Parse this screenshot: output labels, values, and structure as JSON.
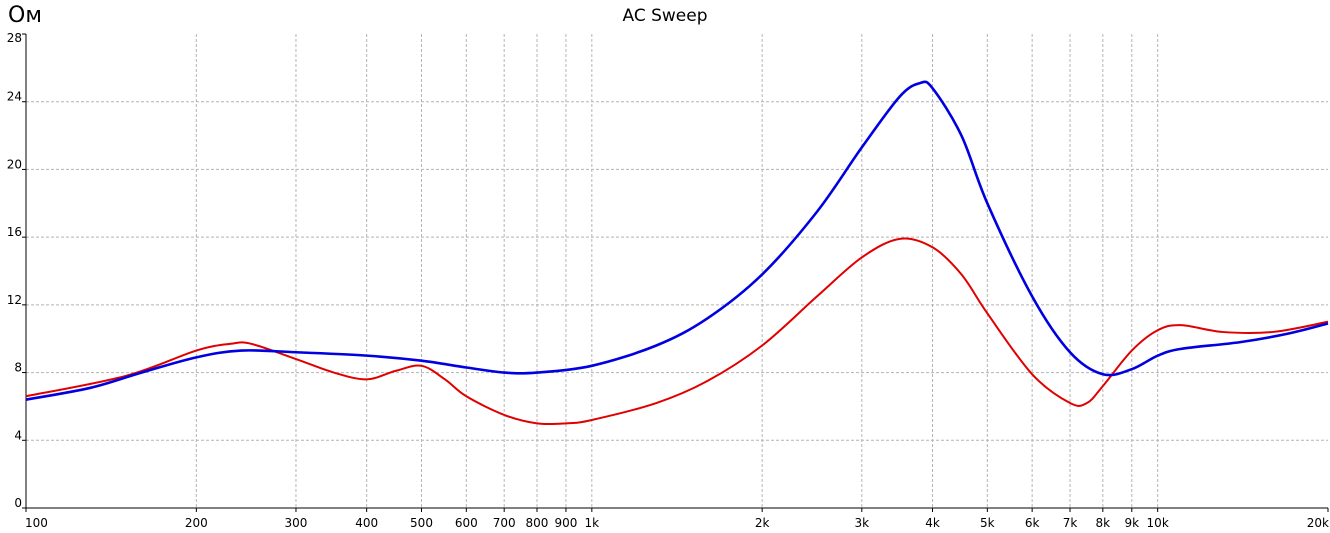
{
  "chart_data": {
    "type": "line",
    "title": "AC Sweep",
    "ylabel": "Ом",
    "xlabel": "",
    "xscale": "log",
    "xlim": [
      100,
      20000
    ],
    "ylim": [
      0,
      28
    ],
    "grid": true,
    "x_ticks": [
      {
        "value": 100,
        "label": "100"
      },
      {
        "value": 200,
        "label": "200"
      },
      {
        "value": 300,
        "label": "300"
      },
      {
        "value": 400,
        "label": "400"
      },
      {
        "value": 500,
        "label": "500"
      },
      {
        "value": 600,
        "label": "600"
      },
      {
        "value": 700,
        "label": "700"
      },
      {
        "value": 800,
        "label": "800"
      },
      {
        "value": 900,
        "label": "900"
      },
      {
        "value": 1000,
        "label": "1k"
      },
      {
        "value": 2000,
        "label": "2k"
      },
      {
        "value": 3000,
        "label": "3k"
      },
      {
        "value": 4000,
        "label": "4k"
      },
      {
        "value": 5000,
        "label": "5k"
      },
      {
        "value": 6000,
        "label": "6k"
      },
      {
        "value": 7000,
        "label": "7k"
      },
      {
        "value": 8000,
        "label": "8k"
      },
      {
        "value": 9000,
        "label": "9k"
      },
      {
        "value": 10000,
        "label": "10k"
      },
      {
        "value": 20000,
        "label": "20k"
      }
    ],
    "y_ticks": [
      {
        "value": 0,
        "label": "0"
      },
      {
        "value": 4,
        "label": "4"
      },
      {
        "value": 8,
        "label": "8"
      },
      {
        "value": 12,
        "label": "12"
      },
      {
        "value": 16,
        "label": "16"
      },
      {
        "value": 20,
        "label": "20"
      },
      {
        "value": 24,
        "label": "24"
      },
      {
        "value": 28,
        "label": "28"
      }
    ],
    "series": [
      {
        "color": "#0000e0",
        "points": [
          [
            100,
            6.4
          ],
          [
            130,
            7.1
          ],
          [
            160,
            8.0
          ],
          [
            200,
            8.9
          ],
          [
            240,
            9.3
          ],
          [
            300,
            9.2
          ],
          [
            400,
            9.0
          ],
          [
            500,
            8.7
          ],
          [
            600,
            8.3
          ],
          [
            700,
            8.0
          ],
          [
            800,
            8.0
          ],
          [
            1000,
            8.4
          ],
          [
            1300,
            9.6
          ],
          [
            1600,
            11.2
          ],
          [
            2000,
            13.8
          ],
          [
            2500,
            17.5
          ],
          [
            3000,
            21.3
          ],
          [
            3500,
            24.3
          ],
          [
            3800,
            25.1
          ],
          [
            4000,
            24.8
          ],
          [
            4500,
            22.0
          ],
          [
            5000,
            18.0
          ],
          [
            6000,
            12.5
          ],
          [
            7000,
            9.2
          ],
          [
            8000,
            7.9
          ],
          [
            9000,
            8.2
          ],
          [
            10000,
            9.0
          ],
          [
            11000,
            9.4
          ],
          [
            14000,
            9.8
          ],
          [
            17000,
            10.3
          ],
          [
            20000,
            10.9
          ]
        ]
      },
      {
        "color": "#e00000",
        "points": [
          [
            100,
            6.6
          ],
          [
            150,
            7.8
          ],
          [
            200,
            9.3
          ],
          [
            230,
            9.7
          ],
          [
            250,
            9.7
          ],
          [
            300,
            8.8
          ],
          [
            350,
            8.0
          ],
          [
            400,
            7.6
          ],
          [
            450,
            8.1
          ],
          [
            500,
            8.4
          ],
          [
            550,
            7.6
          ],
          [
            600,
            6.6
          ],
          [
            700,
            5.5
          ],
          [
            800,
            5.0
          ],
          [
            900,
            5.0
          ],
          [
            1000,
            5.2
          ],
          [
            1300,
            6.2
          ],
          [
            1600,
            7.5
          ],
          [
            2000,
            9.6
          ],
          [
            2500,
            12.5
          ],
          [
            3000,
            14.8
          ],
          [
            3500,
            15.9
          ],
          [
            4000,
            15.4
          ],
          [
            4500,
            13.8
          ],
          [
            5000,
            11.5
          ],
          [
            6000,
            7.9
          ],
          [
            7000,
            6.2
          ],
          [
            7500,
            6.2
          ],
          [
            8000,
            7.2
          ],
          [
            9000,
            9.3
          ],
          [
            10000,
            10.5
          ],
          [
            11000,
            10.8
          ],
          [
            13000,
            10.4
          ],
          [
            16000,
            10.4
          ],
          [
            20000,
            11.0
          ]
        ]
      }
    ]
  }
}
